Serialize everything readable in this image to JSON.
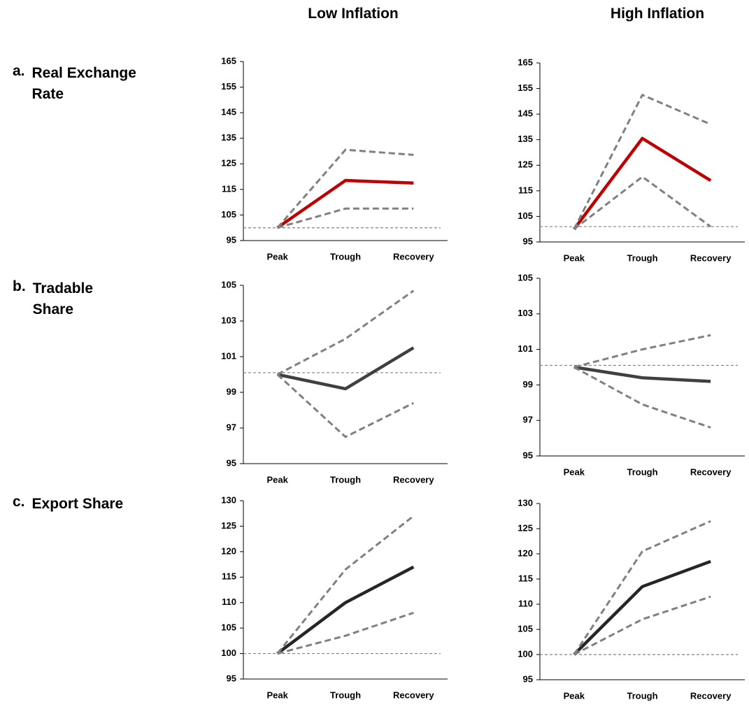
{
  "columns": [
    "Low Inflation",
    "High Inflation"
  ],
  "rows": [
    {
      "letter": "a.",
      "label": "Real Exchange Rate"
    },
    {
      "letter": "b.",
      "label": "Tradable Share"
    },
    {
      "letter": "c.",
      "label": "Export Share"
    }
  ],
  "chart_data": [
    {
      "type": "line",
      "categories": [
        "Peak",
        "Trough",
        "Recovery"
      ],
      "ylim": [
        95,
        165
      ],
      "yticks": [
        95,
        105,
        115,
        125,
        135,
        145,
        155,
        165
      ],
      "baseline": 100,
      "baseline_color": "#808080",
      "series": [
        {
          "color": "#c00000",
          "style": "solid",
          "values": [
            100,
            118.5,
            117.5
          ]
        },
        {
          "color": "#808080",
          "style": "dashed",
          "values": [
            100,
            130.5,
            128.5
          ]
        },
        {
          "color": "#808080",
          "style": "dashed",
          "values": [
            100,
            107.5,
            107.5
          ]
        }
      ]
    },
    {
      "type": "line",
      "categories": [
        "Peak",
        "Trough",
        "Recovery"
      ],
      "ylim": [
        95,
        165
      ],
      "yticks": [
        95,
        105,
        115,
        125,
        135,
        145,
        155,
        165
      ],
      "baseline": 101,
      "baseline_color": "#808080",
      "series": [
        {
          "color": "#c00000",
          "style": "solid",
          "values": [
            100,
            135.5,
            119
          ]
        },
        {
          "color": "#808080",
          "style": "dashed",
          "values": [
            100,
            152.5,
            141
          ]
        },
        {
          "color": "#808080",
          "style": "dashed",
          "values": [
            100,
            120.5,
            101
          ]
        }
      ]
    },
    {
      "type": "line",
      "categories": [
        "Peak",
        "Trough",
        "Recovery"
      ],
      "ylim": [
        95,
        105
      ],
      "yticks": [
        95,
        97,
        99,
        101,
        103,
        105
      ],
      "baseline": 100.1,
      "baseline_color": "#808080",
      "series": [
        {
          "color": "#404040",
          "style": "solid",
          "values": [
            100,
            99.2,
            101.5
          ]
        },
        {
          "color": "#808080",
          "style": "dashed",
          "values": [
            100,
            102,
            104.7
          ]
        },
        {
          "color": "#808080",
          "style": "dashed",
          "values": [
            100,
            96.5,
            98.4
          ]
        }
      ]
    },
    {
      "type": "line",
      "categories": [
        "Peak",
        "Trough",
        "Recovery"
      ],
      "ylim": [
        95,
        105
      ],
      "yticks": [
        95,
        97,
        99,
        101,
        103,
        105
      ],
      "baseline": 100.1,
      "baseline_color": "#808080",
      "series": [
        {
          "color": "#404040",
          "style": "solid",
          "values": [
            100,
            99.4,
            99.2
          ]
        },
        {
          "color": "#808080",
          "style": "dashed",
          "values": [
            100,
            101,
            101.8
          ]
        },
        {
          "color": "#808080",
          "style": "dashed",
          "values": [
            100,
            97.9,
            96.6
          ]
        }
      ]
    },
    {
      "type": "line",
      "categories": [
        "Peak",
        "Trough",
        "Recovery"
      ],
      "ylim": [
        95,
        130
      ],
      "yticks": [
        95,
        100,
        105,
        110,
        115,
        120,
        125,
        130
      ],
      "baseline": 100,
      "baseline_color": "#808080",
      "series": [
        {
          "color": "#262626",
          "style": "solid",
          "values": [
            100,
            110,
            117
          ]
        },
        {
          "color": "#808080",
          "style": "dashed",
          "values": [
            100,
            116.5,
            127
          ]
        },
        {
          "color": "#808080",
          "style": "dashed",
          "values": [
            100,
            103.5,
            108
          ]
        }
      ]
    },
    {
      "type": "line",
      "categories": [
        "Peak",
        "Trough",
        "Recovery"
      ],
      "ylim": [
        95,
        130
      ],
      "yticks": [
        95,
        100,
        105,
        110,
        115,
        120,
        125,
        130
      ],
      "baseline": 100,
      "baseline_color": "#808080",
      "series": [
        {
          "color": "#262626",
          "style": "solid",
          "values": [
            100,
            113.5,
            118.5
          ]
        },
        {
          "color": "#808080",
          "style": "dashed",
          "values": [
            100,
            120.5,
            126.5
          ]
        },
        {
          "color": "#808080",
          "style": "dashed",
          "values": [
            100,
            107,
            111.5
          ]
        }
      ]
    }
  ]
}
